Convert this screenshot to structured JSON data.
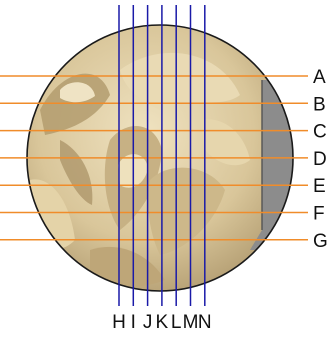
{
  "figure": {
    "horizontal_line_labels": [
      "A",
      "B",
      "C",
      "D",
      "E",
      "F",
      "G"
    ],
    "vertical_line_labels": [
      "H",
      "I",
      "J",
      "K",
      "L",
      "M",
      "N"
    ],
    "colors": {
      "horizontal_lines": "#f08c2a",
      "vertical_lines": "#1a1aa8",
      "circle_outline": "#1a1a1a",
      "surface_base": "#d9c69a",
      "surface_shadow": "#8a7550",
      "flat_region": "#8c8c8c",
      "labels": "#111111"
    }
  }
}
